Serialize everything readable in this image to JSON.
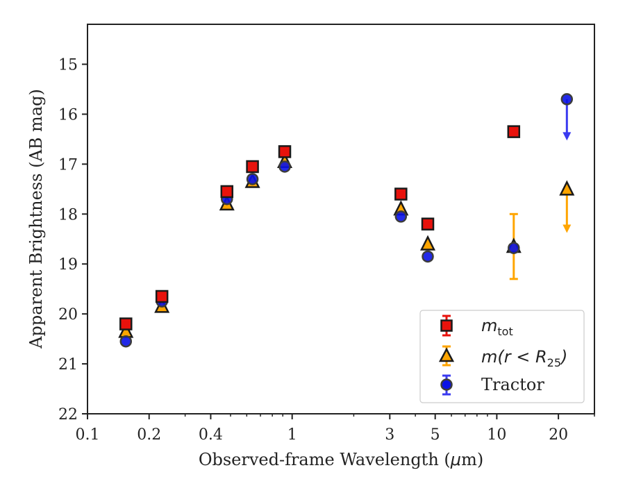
{
  "chart_data": {
    "type": "scatter",
    "xlabel_main": "Observed-frame Wavelength (",
    "xlabel_mu": "μ",
    "xlabel_tail": "m)",
    "ylabel": "Apparent Brightness (AB mag)",
    "x_scale": "log",
    "xlim": [
      0.1,
      30
    ],
    "ylim": [
      22,
      14.2
    ],
    "y_inverted": true,
    "grid": false,
    "legend_position": "lower-right",
    "xticks": [
      {
        "value": 0.1,
        "label": "0.1"
      },
      {
        "value": 0.2,
        "label": "0.2"
      },
      {
        "value": 0.4,
        "label": "0.4"
      },
      {
        "value": 1,
        "label": "1"
      },
      {
        "value": 3,
        "label": "3"
      },
      {
        "value": 5,
        "label": "5"
      },
      {
        "value": 10,
        "label": "10"
      },
      {
        "value": 20,
        "label": "20"
      }
    ],
    "xminor": [
      0.3,
      0.5,
      0.6,
      0.7,
      0.8,
      0.9,
      2,
      4,
      6,
      7,
      8,
      9,
      30
    ],
    "yticks": [
      {
        "value": 15,
        "label": "15"
      },
      {
        "value": 16,
        "label": "16"
      },
      {
        "value": 17,
        "label": "17"
      },
      {
        "value": 18,
        "label": "18"
      },
      {
        "value": 19,
        "label": "19"
      },
      {
        "value": 20,
        "label": "20"
      },
      {
        "value": 21,
        "label": "21"
      },
      {
        "value": 22,
        "label": "22"
      }
    ],
    "series": [
      {
        "legend_base": "m",
        "legend_sub": "tot",
        "marker": "square",
        "color": "#e8120c",
        "err_color": "#e8120c",
        "points": [
          {
            "x": 0.154,
            "y": 20.2
          },
          {
            "x": 0.231,
            "y": 19.65
          },
          {
            "x": 0.48,
            "y": 17.55
          },
          {
            "x": 0.64,
            "y": 17.05
          },
          {
            "x": 0.92,
            "y": 16.75
          },
          {
            "x": 3.4,
            "y": 17.6
          },
          {
            "x": 4.6,
            "y": 18.2
          },
          {
            "x": 12.1,
            "y": 16.35
          }
        ]
      },
      {
        "legend_base": "m(r < R",
        "legend_sub": "25",
        "legend_tail": ")",
        "marker": "triangle",
        "color": "#ffa500",
        "err_color": "#ffa500",
        "points": [
          {
            "x": 0.154,
            "y": 20.35
          },
          {
            "x": 0.231,
            "y": 19.85
          },
          {
            "x": 0.48,
            "y": 17.8
          },
          {
            "x": 0.64,
            "y": 17.35
          },
          {
            "x": 0.92,
            "y": 16.95
          },
          {
            "x": 3.4,
            "y": 17.9
          },
          {
            "x": 4.6,
            "y": 18.6
          },
          {
            "x": 12.1,
            "y": 18.65,
            "err_low": 18.0,
            "err_high": 19.3
          },
          {
            "x": 22,
            "y": 17.5,
            "upper_limit": true,
            "arrow_to": 18.35
          }
        ]
      },
      {
        "name": "Tractor",
        "marker": "circle",
        "color": "#0a12e6",
        "err_color": "#3a3af0",
        "points": [
          {
            "x": 0.154,
            "y": 20.55
          },
          {
            "x": 0.231,
            "y": 19.75
          },
          {
            "x": 0.48,
            "y": 17.7
          },
          {
            "x": 0.64,
            "y": 17.3
          },
          {
            "x": 0.92,
            "y": 17.05
          },
          {
            "x": 3.4,
            "y": 18.05
          },
          {
            "x": 4.6,
            "y": 18.85
          },
          {
            "x": 12.1,
            "y": 18.68
          },
          {
            "x": 22,
            "y": 15.7,
            "upper_limit": true,
            "arrow_to": 16.5
          }
        ]
      }
    ]
  }
}
